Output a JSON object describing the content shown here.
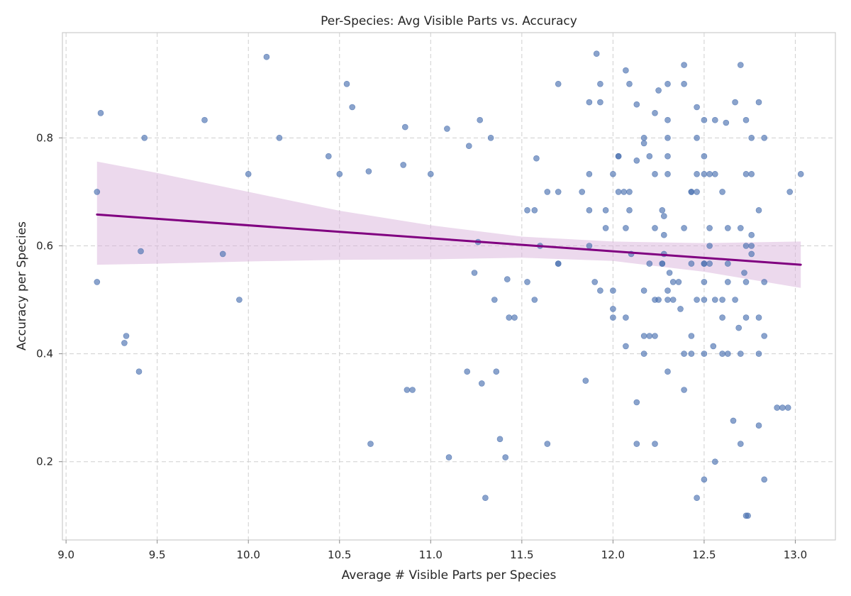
{
  "chart_data": {
    "type": "scatter",
    "title": "Per-Species: Avg Visible Parts vs. Accuracy",
    "xlabel": "Average # Visible Parts per Species",
    "ylabel": "Accuracy per Species",
    "xlim": [
      8.98,
      13.22
    ],
    "ylim": [
      0.055,
      0.995
    ],
    "xticks": [
      "9.0",
      "9.5",
      "10.0",
      "10.5",
      "11.0",
      "11.5",
      "12.0",
      "12.5",
      "13.0"
    ],
    "xtick_values": [
      9.0,
      9.5,
      10.0,
      10.5,
      11.0,
      11.5,
      12.0,
      12.5,
      13.0
    ],
    "yticks": [
      "0.2",
      "0.4",
      "0.6",
      "0.8"
    ],
    "ytick_values": [
      0.2,
      0.4,
      0.6,
      0.8
    ],
    "grid": true,
    "point_color": "#4c72b0",
    "regression_color": "#800080",
    "band_color": "#d9b3db",
    "points": [
      [
        9.17,
        0.7
      ],
      [
        9.17,
        0.533
      ],
      [
        9.19,
        0.846
      ],
      [
        9.32,
        0.42
      ],
      [
        9.33,
        0.433
      ],
      [
        9.4,
        0.367
      ],
      [
        9.41,
        0.59
      ],
      [
        9.43,
        0.8
      ],
      [
        9.76,
        0.833
      ],
      [
        9.86,
        0.585
      ],
      [
        9.95,
        0.5
      ],
      [
        10.0,
        0.733
      ],
      [
        10.1,
        0.95
      ],
      [
        10.17,
        0.8
      ],
      [
        10.44,
        0.766
      ],
      [
        10.5,
        0.733
      ],
      [
        10.54,
        0.9
      ],
      [
        10.57,
        0.857
      ],
      [
        10.66,
        0.738
      ],
      [
        10.67,
        0.233
      ],
      [
        10.85,
        0.75
      ],
      [
        10.86,
        0.82
      ],
      [
        10.87,
        0.333
      ],
      [
        10.9,
        0.333
      ],
      [
        11.0,
        0.733
      ],
      [
        11.09,
        0.817
      ],
      [
        11.1,
        0.208
      ],
      [
        11.2,
        0.367
      ],
      [
        11.21,
        0.785
      ],
      [
        11.24,
        0.55
      ],
      [
        11.26,
        0.607
      ],
      [
        11.27,
        0.833
      ],
      [
        11.28,
        0.345
      ],
      [
        11.3,
        0.133
      ],
      [
        11.33,
        0.8
      ],
      [
        11.35,
        0.5
      ],
      [
        11.36,
        0.367
      ],
      [
        11.38,
        0.242
      ],
      [
        11.41,
        0.208
      ],
      [
        11.42,
        0.538
      ],
      [
        11.43,
        0.467
      ],
      [
        11.46,
        0.467
      ],
      [
        11.53,
        0.533
      ],
      [
        11.53,
        0.666
      ],
      [
        11.57,
        0.666
      ],
      [
        11.57,
        0.5
      ],
      [
        11.58,
        0.762
      ],
      [
        11.6,
        0.6
      ],
      [
        11.64,
        0.233
      ],
      [
        11.64,
        0.7
      ],
      [
        11.7,
        0.9
      ],
      [
        11.7,
        0.7
      ],
      [
        11.7,
        0.567
      ],
      [
        11.7,
        0.567
      ],
      [
        11.83,
        0.7
      ],
      [
        11.85,
        0.35
      ],
      [
        11.87,
        0.866
      ],
      [
        11.87,
        0.733
      ],
      [
        11.87,
        0.666
      ],
      [
        11.87,
        0.6
      ],
      [
        11.9,
        0.533
      ],
      [
        11.91,
        0.956
      ],
      [
        11.93,
        0.9
      ],
      [
        11.93,
        0.866
      ],
      [
        11.93,
        0.517
      ],
      [
        11.96,
        0.633
      ],
      [
        11.96,
        0.666
      ],
      [
        12.0,
        0.733
      ],
      [
        12.0,
        0.517
      ],
      [
        12.0,
        0.483
      ],
      [
        12.0,
        0.467
      ],
      [
        12.03,
        0.766
      ],
      [
        12.03,
        0.766
      ],
      [
        12.03,
        0.7
      ],
      [
        12.06,
        0.7
      ],
      [
        12.07,
        0.925
      ],
      [
        12.07,
        0.633
      ],
      [
        12.07,
        0.467
      ],
      [
        12.07,
        0.414
      ],
      [
        12.09,
        0.9
      ],
      [
        12.09,
        0.7
      ],
      [
        12.09,
        0.666
      ],
      [
        12.1,
        0.585
      ],
      [
        12.13,
        0.862
      ],
      [
        12.13,
        0.758
      ],
      [
        12.13,
        0.31
      ],
      [
        12.13,
        0.233
      ],
      [
        12.17,
        0.8
      ],
      [
        12.17,
        0.79
      ],
      [
        12.17,
        0.517
      ],
      [
        12.17,
        0.433
      ],
      [
        12.17,
        0.4
      ],
      [
        12.2,
        0.766
      ],
      [
        12.2,
        0.567
      ],
      [
        12.2,
        0.433
      ],
      [
        12.23,
        0.846
      ],
      [
        12.23,
        0.733
      ],
      [
        12.23,
        0.633
      ],
      [
        12.23,
        0.5
      ],
      [
        12.23,
        0.433
      ],
      [
        12.23,
        0.233
      ],
      [
        12.25,
        0.888
      ],
      [
        12.25,
        0.5
      ],
      [
        12.27,
        0.666
      ],
      [
        12.27,
        0.567
      ],
      [
        12.27,
        0.567
      ],
      [
        12.28,
        0.655
      ],
      [
        12.28,
        0.62
      ],
      [
        12.28,
        0.585
      ],
      [
        12.3,
        0.9
      ],
      [
        12.3,
        0.833
      ],
      [
        12.3,
        0.8
      ],
      [
        12.3,
        0.766
      ],
      [
        12.3,
        0.733
      ],
      [
        12.3,
        0.517
      ],
      [
        12.3,
        0.5
      ],
      [
        12.3,
        0.367
      ],
      [
        12.31,
        0.55
      ],
      [
        12.33,
        0.533
      ],
      [
        12.33,
        0.5
      ],
      [
        12.36,
        0.533
      ],
      [
        12.37,
        0.483
      ],
      [
        12.39,
        0.935
      ],
      [
        12.39,
        0.9
      ],
      [
        12.39,
        0.633
      ],
      [
        12.39,
        0.4
      ],
      [
        12.39,
        0.333
      ],
      [
        12.43,
        0.7
      ],
      [
        12.43,
        0.7
      ],
      [
        12.43,
        0.567
      ],
      [
        12.43,
        0.433
      ],
      [
        12.43,
        0.4
      ],
      [
        12.46,
        0.857
      ],
      [
        12.46,
        0.8
      ],
      [
        12.46,
        0.733
      ],
      [
        12.46,
        0.7
      ],
      [
        12.46,
        0.5
      ],
      [
        12.46,
        0.133
      ],
      [
        12.5,
        0.833
      ],
      [
        12.5,
        0.766
      ],
      [
        12.5,
        0.733
      ],
      [
        12.5,
        0.567
      ],
      [
        12.5,
        0.567
      ],
      [
        12.5,
        0.533
      ],
      [
        12.5,
        0.5
      ],
      [
        12.5,
        0.4
      ],
      [
        12.5,
        0.167
      ],
      [
        12.53,
        0.733
      ],
      [
        12.53,
        0.633
      ],
      [
        12.53,
        0.6
      ],
      [
        12.53,
        0.567
      ],
      [
        12.55,
        0.414
      ],
      [
        12.56,
        0.833
      ],
      [
        12.56,
        0.733
      ],
      [
        12.56,
        0.5
      ],
      [
        12.56,
        0.2
      ],
      [
        12.6,
        0.7
      ],
      [
        12.6,
        0.5
      ],
      [
        12.6,
        0.467
      ],
      [
        12.6,
        0.4
      ],
      [
        12.62,
        0.828
      ],
      [
        12.63,
        0.633
      ],
      [
        12.63,
        0.567
      ],
      [
        12.63,
        0.533
      ],
      [
        12.63,
        0.4
      ],
      [
        12.66,
        0.276
      ],
      [
        12.67,
        0.866
      ],
      [
        12.67,
        0.5
      ],
      [
        12.69,
        0.448
      ],
      [
        12.7,
        0.935
      ],
      [
        12.7,
        0.633
      ],
      [
        12.7,
        0.4
      ],
      [
        12.7,
        0.233
      ],
      [
        12.72,
        0.55
      ],
      [
        12.73,
        0.833
      ],
      [
        12.73,
        0.733
      ],
      [
        12.73,
        0.6
      ],
      [
        12.73,
        0.533
      ],
      [
        12.73,
        0.467
      ],
      [
        12.73,
        0.1
      ],
      [
        12.74,
        0.1
      ],
      [
        12.76,
        0.8
      ],
      [
        12.76,
        0.733
      ],
      [
        12.76,
        0.62
      ],
      [
        12.76,
        0.6
      ],
      [
        12.76,
        0.585
      ],
      [
        12.8,
        0.866
      ],
      [
        12.8,
        0.666
      ],
      [
        12.8,
        0.467
      ],
      [
        12.8,
        0.4
      ],
      [
        12.8,
        0.267
      ],
      [
        12.83,
        0.8
      ],
      [
        12.83,
        0.533
      ],
      [
        12.83,
        0.433
      ],
      [
        12.83,
        0.167
      ],
      [
        12.9,
        0.3
      ],
      [
        12.93,
        0.3
      ],
      [
        12.96,
        0.3
      ],
      [
        12.97,
        0.7
      ],
      [
        13.03,
        0.733
      ]
    ],
    "regression_line": {
      "x": [
        9.17,
        13.03
      ],
      "y": [
        0.658,
        0.565
      ]
    },
    "confidence_band": {
      "x": [
        9.17,
        9.5,
        10.0,
        10.5,
        11.0,
        11.5,
        12.0,
        12.5,
        13.03
      ],
      "upper": [
        0.756,
        0.735,
        0.7,
        0.665,
        0.638,
        0.617,
        0.608,
        0.605,
        0.608
      ],
      "lower": [
        0.565,
        0.567,
        0.571,
        0.574,
        0.575,
        0.578,
        0.572,
        0.552,
        0.522
      ]
    }
  }
}
